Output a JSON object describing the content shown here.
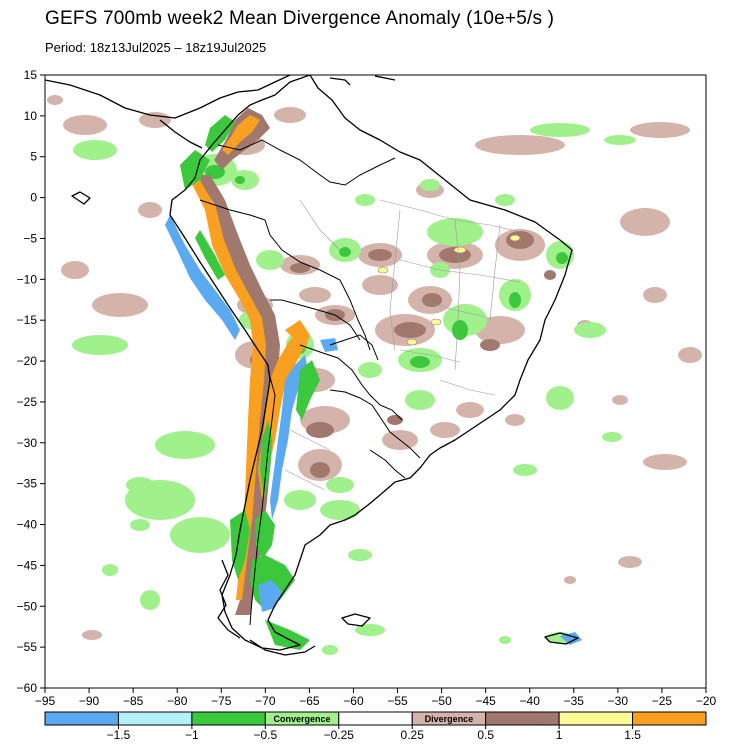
{
  "title": "GEFS 700mb week2 Mean Divergence Anomaly (10e+5/s )",
  "period": "Period: 18z13Jul2025 – 18z19Jul2025",
  "map": {
    "lon_range": [
      -95,
      -20
    ],
    "lat_range": [
      -60,
      15
    ],
    "x_ticks": [
      -95,
      -90,
      -85,
      -80,
      -75,
      -70,
      -65,
      -60,
      -55,
      -50,
      -45,
      -40,
      -35,
      -30,
      -25,
      -20
    ],
    "y_ticks": [
      15,
      10,
      5,
      0,
      -5,
      -10,
      -15,
      -20,
      -25,
      -30,
      -35,
      -40,
      -45,
      -50,
      -55,
      -60
    ],
    "x_tick_labels": [
      "−95",
      "−90",
      "−85",
      "−80",
      "−75",
      "−70",
      "−65",
      "−60",
      "−55",
      "−50",
      "−45",
      "−40",
      "−35",
      "−30",
      "−25",
      "−20"
    ],
    "y_tick_labels": [
      "15",
      "10",
      "5",
      "0",
      "−5",
      "−10",
      "−15",
      "−20",
      "−25",
      "−30",
      "−35",
      "−40",
      "−45",
      "−50",
      "−55",
      "−60"
    ],
    "coastline_color": "#000000",
    "border_color": "#000000",
    "state_border_color": "#9a9a9a"
  },
  "colorbar": {
    "colors": [
      "#5ba9f0",
      "#b4f0fa",
      "#3cc83c",
      "#a0f08c",
      "#ffffff",
      "#d4b4aa",
      "#a0786e",
      "#fafa96",
      "#faa020"
    ],
    "tick_labels": [
      "−1.5",
      "−1",
      "−0.5",
      "−0.25",
      "0.25",
      "0.5",
      "1",
      "1.5"
    ],
    "convergence_label": "Convergence",
    "divergence_label": "Divergence"
  },
  "field_colors": {
    "strong_divergence": "#faa020",
    "divergence_1": "#fafa96",
    "divergence_05": "#a0786e",
    "weak_divergence": "#d4b4aa",
    "weak_convergence": "#a0f08c",
    "convergence_05": "#3cc83c",
    "convergence_1": "#b4f0fa",
    "strong_convergence": "#5ba9f0"
  }
}
